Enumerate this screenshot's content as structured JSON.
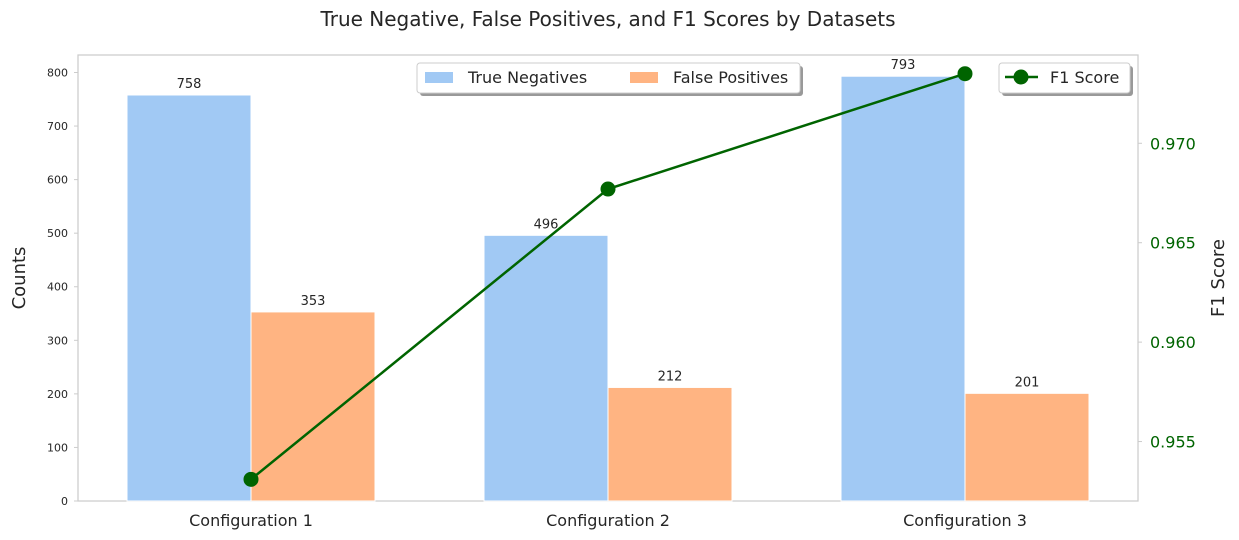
{
  "chart_data": {
    "type": "bar",
    "title": "True Negative, False Positives, and F1 Scores by Datasets",
    "xlabel": "",
    "ylabel": "Counts",
    "y2label": "F1 Score",
    "categories": [
      "Configuration 1",
      "Configuration 2",
      "Configuration 3"
    ],
    "series": [
      {
        "name": "True Negatives",
        "type": "bar",
        "axis": "left",
        "color": "#a1c9f4",
        "values": [
          758,
          496,
          793
        ]
      },
      {
        "name": "False Positives",
        "type": "bar",
        "axis": "left",
        "color": "#ffb482",
        "values": [
          353,
          212,
          201
        ]
      },
      {
        "name": "F1 Score",
        "type": "line",
        "axis": "right",
        "color": "#006400",
        "values": [
          0.9531,
          0.9677,
          0.9735
        ]
      }
    ],
    "ylim": [
      0,
      832.65
    ],
    "y2lim": [
      0.95201,
      0.97444
    ],
    "yticks": [
      0,
      100,
      200,
      300,
      400,
      500,
      600,
      700,
      800
    ],
    "y2ticks": [
      "0.955",
      "0.960",
      "0.965",
      "0.970"
    ],
    "legend_bars_placement": "top-center",
    "legend_line_placement": "top-right",
    "grid": false
  }
}
